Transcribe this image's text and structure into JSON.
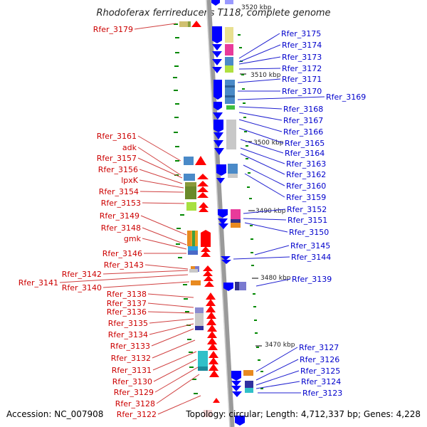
{
  "title": "Rhodoferax ferrireducens T118, complete genome",
  "footer": {
    "accession": "Accession: NC_007908",
    "summary": "Topology: circular; Length: 4,712,337 bp; Genes: 4,228"
  },
  "scale_labels": [
    "3520 kbp",
    "3510 kbp",
    "3500 kbp",
    "3490 kbp",
    "3480 kbp",
    "3470 kbp"
  ],
  "left_labels": [
    "Rfer_3179",
    "Rfer_3161",
    "adk",
    "Rfer_3157",
    "Rfer_3156",
    "lpxK",
    "Rfer_3154",
    "Rfer_3153",
    "Rfer_3149",
    "Rfer_3148",
    "gmk",
    "Rfer_3146",
    "Rfer_3143",
    "Rfer_3142",
    "Rfer_3141",
    "Rfer_3140",
    "Rfer_3138",
    "Rfer_3137",
    "Rfer_3136",
    "Rfer_3135",
    "Rfer_3134",
    "Rfer_3133",
    "Rfer_3132",
    "Rfer_3131",
    "Rfer_3130",
    "Rfer_3129",
    "Rfer_3128",
    "Rfer_3122"
  ],
  "right_labels": [
    "Rfer_3175",
    "Rfer_3174",
    "Rfer_3173",
    "Rfer_3172",
    "Rfer_3171",
    "Rfer_3170",
    "Rfer_3169",
    "Rfer_3168",
    "Rfer_3167",
    "Rfer_3166",
    "Rfer_3165",
    "Rfer_3164",
    "Rfer_3163",
    "Rfer_3162",
    "Rfer_3160",
    "Rfer_3159",
    "Rfer_3152",
    "Rfer_3151",
    "Rfer_3150",
    "Rfer_3145",
    "Rfer_3144",
    "Rfer_3139",
    "Rfer_3127",
    "Rfer_3126",
    "Rfer_3125",
    "Rfer_3124",
    "Rfer_3123"
  ],
  "colors": {
    "forward_strand": "#ff0000",
    "reverse_strand": "#0000ff",
    "backbone": "#9a9a9a",
    "gc_marks": "#008800",
    "left_label": "#cc0000",
    "right_label": "#0000cc"
  }
}
